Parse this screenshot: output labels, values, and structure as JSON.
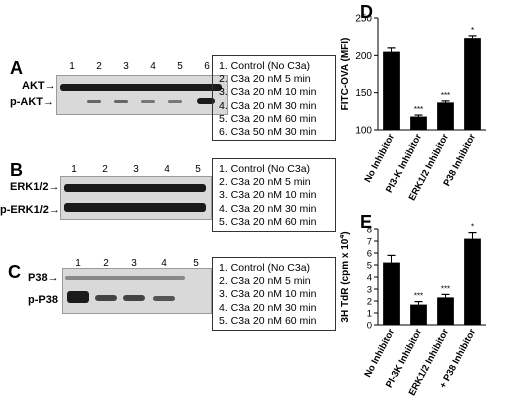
{
  "panels": {
    "A": {
      "letter": "A",
      "lanes": [
        "1",
        "2",
        "3",
        "4",
        "5",
        "6"
      ],
      "bands": [
        "AKT",
        "p-AKT"
      ],
      "legend": [
        "1. Control (No C3a)",
        "2. C3a 20 nM  5 min",
        "3. C3a 20 nM 10 min",
        "4. C3a 20 nM 30 min",
        "5. C3a 20 nM 60 min",
        "6. C3a 50 nM 30 min"
      ]
    },
    "B": {
      "letter": "B",
      "lanes": [
        "1",
        "2",
        "3",
        "4",
        "5"
      ],
      "bands": [
        "ERK1/2",
        "p-ERK1/2"
      ],
      "legend": [
        "1. Control (No C3a)",
        "2. C3a 20 nM  5 min",
        "3. C3a 20 nM 10 min",
        "4. C3a 20 nM 30 min",
        "5. C3a 20 nM 60 min"
      ]
    },
    "C": {
      "letter": "C",
      "lanes": [
        "1",
        "2",
        "3",
        "4",
        "5"
      ],
      "bands": [
        "P38",
        "p-P38"
      ],
      "legend": [
        "1. Control (No C3a)",
        "2. C3a 20 nM  5 min",
        "3. C3a 20 nM 10 min",
        "4. C3a 20 nM 30 min",
        "5. C3a 20 nM 60 min"
      ]
    }
  },
  "arrow_glyph": "→",
  "chart_data": [
    {
      "panel": "D",
      "type": "bar",
      "ylabel": "FITC-OVA (MFI)",
      "categories": [
        "No Inhibitor",
        "PI3-K Inhibitor",
        "ERK1/2 Inhibitor",
        "P38 Inhibitor"
      ],
      "values": [
        205,
        118,
        137,
        223
      ],
      "errors": [
        5,
        2,
        2,
        3
      ],
      "significance": [
        "",
        "***",
        "***",
        "*"
      ],
      "ylim": [
        100,
        250
      ],
      "yticks": [
        "100",
        "150",
        "200",
        "250"
      ],
      "bar_color": "#000000"
    },
    {
      "panel": "E",
      "type": "bar",
      "ylabel": "3H TdR (cpm x 10",
      "ylabel_sup": "4",
      "ylabel_close": ")",
      "categories": [
        "No Inhibitor",
        "PI-3K Inhibitor",
        "ERK1/2 Inhibitor",
        "+ P38 Inhibitor"
      ],
      "values": [
        5.2,
        1.7,
        2.3,
        7.2
      ],
      "errors": [
        0.6,
        0.25,
        0.25,
        0.5
      ],
      "significance": [
        "",
        "***",
        "***",
        "*"
      ],
      "ylim": [
        0,
        8
      ],
      "yticks": [
        "0",
        "1",
        "2",
        "3",
        "4",
        "5",
        "6",
        "7",
        "8"
      ],
      "bar_color": "#000000"
    }
  ]
}
